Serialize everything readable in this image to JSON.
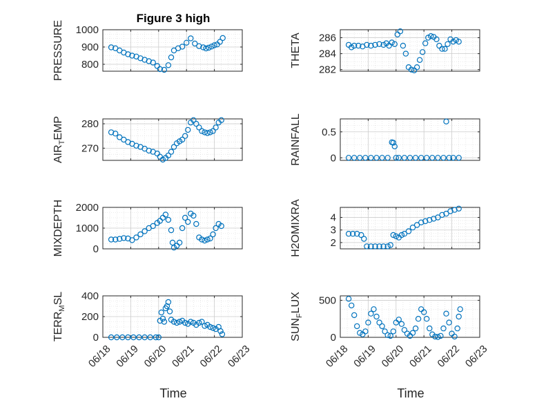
{
  "figure": {
    "title": "Figure 3 high",
    "xlabel": "Time"
  },
  "colors": {
    "marker": "#0072BD",
    "axis": "#262626",
    "grid": "#d9d9d9"
  },
  "chart_data": [
    {
      "id": "pressure",
      "type": "scatter",
      "ylabel": "PRESSURE",
      "sub": "",
      "suffix": "",
      "ylim": [
        760,
        1000
      ],
      "yticks": [
        800,
        900,
        1000
      ],
      "tick_labels": [
        "800",
        "900",
        "1000"
      ],
      "x": [
        0.3,
        0.45,
        0.6,
        0.75,
        0.9,
        1.05,
        1.2,
        1.35,
        1.5,
        1.65,
        1.8,
        1.95,
        2.05,
        2.2,
        2.35,
        2.45,
        2.55,
        2.7,
        2.85,
        3.0,
        3.15,
        3.3,
        3.45,
        3.6,
        3.7,
        3.8,
        3.9,
        4.0,
        4.1,
        4.2,
        4.3
      ],
      "y": [
        898,
        893,
        880,
        868,
        858,
        850,
        845,
        835,
        826,
        818,
        810,
        790,
        772,
        768,
        795,
        840,
        880,
        893,
        902,
        925,
        950,
        920,
        905,
        898,
        892,
        896,
        903,
        910,
        915,
        930,
        952
      ]
    },
    {
      "id": "theta",
      "type": "scatter",
      "ylabel": "THETA",
      "sub": "",
      "suffix": "",
      "ylim": [
        281.8,
        287
      ],
      "yticks": [
        282,
        284,
        286
      ],
      "tick_labels": [
        "282",
        "284",
        "286"
      ],
      "x": [
        0.3,
        0.4,
        0.5,
        0.65,
        0.8,
        0.95,
        1.1,
        1.25,
        1.4,
        1.55,
        1.65,
        1.75,
        1.85,
        1.95,
        2.05,
        2.15,
        2.25,
        2.35,
        2.45,
        2.55,
        2.65,
        2.75,
        2.85,
        2.95,
        3.05,
        3.15,
        3.25,
        3.35,
        3.45,
        3.55,
        3.65,
        3.75,
        3.85,
        3.95,
        4.05,
        4.15,
        4.25
      ],
      "y": [
        285.1,
        284.8,
        285.0,
        285.0,
        284.9,
        285.1,
        285.0,
        285.1,
        285.2,
        285.1,
        285.3,
        285.0,
        285.4,
        285.2,
        286.4,
        286.8,
        285.0,
        284.0,
        282.3,
        282.0,
        281.9,
        282.3,
        283.2,
        284.2,
        285.3,
        286.0,
        286.2,
        286.1,
        285.8,
        285.0,
        284.6,
        284.6,
        285.2,
        285.8,
        285.5,
        285.7,
        285.5
      ]
    },
    {
      "id": "air_temp",
      "type": "scatter",
      "ylabel": "AIR",
      "sub": "T",
      "suffix": "EMP",
      "ylim": [
        265,
        282
      ],
      "yticks": [
        270,
        280
      ],
      "tick_labels": [
        "270",
        "280"
      ],
      "x": [
        0.3,
        0.45,
        0.6,
        0.75,
        0.9,
        1.05,
        1.2,
        1.35,
        1.5,
        1.65,
        1.8,
        1.95,
        2.05,
        2.15,
        2.25,
        2.35,
        2.45,
        2.55,
        2.65,
        2.75,
        2.85,
        2.95,
        3.05,
        3.15,
        3.25,
        3.35,
        3.45,
        3.55,
        3.65,
        3.75,
        3.85,
        3.95,
        4.05,
        4.15,
        4.25
      ],
      "y": [
        276.5,
        276.0,
        274.5,
        273.5,
        272.5,
        271.8,
        271.0,
        270.5,
        269.8,
        269.0,
        268.5,
        267.8,
        266.5,
        265.3,
        266.0,
        267.0,
        268.5,
        270.5,
        272.0,
        272.8,
        273.5,
        275.0,
        277.5,
        280.5,
        281.5,
        280.0,
        278.5,
        277.0,
        276.5,
        276.2,
        276.5,
        277.0,
        278.5,
        280.5,
        281.5
      ]
    },
    {
      "id": "rainfall",
      "type": "scatter",
      "ylabel": "RAINFALL",
      "sub": "",
      "suffix": "",
      "ylim": [
        -0.05,
        0.75
      ],
      "yticks": [
        0,
        0.5
      ],
      "tick_labels": [
        "0",
        "0.5"
      ],
      "x": [
        0.3,
        0.5,
        0.7,
        0.9,
        1.1,
        1.3,
        1.5,
        1.7,
        1.85,
        1.9,
        1.95,
        2.0,
        2.1,
        2.3,
        2.5,
        2.7,
        2.9,
        3.1,
        3.3,
        3.5,
        3.7,
        3.8,
        3.9,
        4.05,
        4.25
      ],
      "y": [
        0,
        0,
        0,
        0,
        0,
        0,
        0,
        0,
        0.3,
        0.29,
        0.22,
        0,
        0,
        0,
        0,
        0,
        0,
        0,
        0,
        0,
        0,
        0.7,
        0,
        0,
        0
      ]
    },
    {
      "id": "mixdepth",
      "type": "scatter",
      "ylabel": "MIXDEPTH",
      "sub": "",
      "suffix": "",
      "ylim": [
        0,
        2000
      ],
      "yticks": [
        0,
        1000,
        2000
      ],
      "tick_labels": [
        "0",
        "1000",
        "2000"
      ],
      "x": [
        0.3,
        0.45,
        0.6,
        0.75,
        0.9,
        1.05,
        1.2,
        1.35,
        1.5,
        1.65,
        1.8,
        1.95,
        2.05,
        2.15,
        2.25,
        2.35,
        2.45,
        2.5,
        2.55,
        2.65,
        2.75,
        2.85,
        2.95,
        3.05,
        3.15,
        3.25,
        3.35,
        3.45,
        3.55,
        3.65,
        3.75,
        3.85,
        3.95,
        4.05,
        4.15,
        4.25
      ],
      "y": [
        450,
        450,
        480,
        520,
        500,
        420,
        550,
        700,
        850,
        1000,
        1100,
        1250,
        1350,
        1500,
        1650,
        1400,
        900,
        300,
        60,
        150,
        300,
        1000,
        1500,
        1300,
        1700,
        1600,
        1200,
        550,
        450,
        400,
        450,
        500,
        700,
        1000,
        1200,
        1100
      ]
    },
    {
      "id": "h2omixra",
      "type": "scatter",
      "ylabel": "H2OMIXRA",
      "sub": "",
      "suffix": "",
      "ylim": [
        1.5,
        4.8
      ],
      "yticks": [
        2,
        3,
        4
      ],
      "tick_labels": [
        "2",
        "3",
        "4"
      ],
      "x": [
        0.3,
        0.45,
        0.6,
        0.75,
        0.85,
        0.95,
        1.1,
        1.25,
        1.4,
        1.55,
        1.7,
        1.8,
        1.9,
        2.0,
        2.1,
        2.2,
        2.3,
        2.45,
        2.6,
        2.75,
        2.9,
        3.05,
        3.2,
        3.35,
        3.5,
        3.65,
        3.8,
        3.95,
        4.1,
        4.25
      ],
      "y": [
        2.7,
        2.7,
        2.7,
        2.6,
        2.3,
        1.7,
        1.7,
        1.7,
        1.7,
        1.7,
        1.7,
        1.8,
        2.6,
        2.5,
        2.4,
        2.6,
        2.7,
        2.9,
        3.2,
        3.4,
        3.6,
        3.7,
        3.8,
        3.9,
        4.0,
        4.2,
        4.3,
        4.5,
        4.6,
        4.7
      ]
    },
    {
      "id": "terr_msl",
      "type": "scatter",
      "ylabel": "TERR",
      "sub": "M",
      "suffix": "SL",
      "ylim": [
        0,
        400
      ],
      "yticks": [
        0,
        200,
        400
      ],
      "tick_labels": [
        "0",
        "200",
        "400"
      ],
      "x": [
        0.3,
        0.5,
        0.7,
        0.9,
        1.1,
        1.3,
        1.5,
        1.7,
        1.9,
        2.0,
        2.05,
        2.1,
        2.15,
        2.2,
        2.25,
        2.3,
        2.35,
        2.4,
        2.45,
        2.55,
        2.65,
        2.75,
        2.85,
        2.95,
        3.05,
        3.15,
        3.25,
        3.35,
        3.45,
        3.55,
        3.65,
        3.75,
        3.85,
        3.95,
        4.05,
        4.15,
        4.22,
        4.28
      ],
      "y": [
        0,
        0,
        0,
        0,
        0,
        0,
        0,
        0,
        0,
        0,
        160,
        240,
        180,
        150,
        280,
        300,
        340,
        250,
        170,
        150,
        140,
        150,
        160,
        140,
        130,
        150,
        140,
        120,
        140,
        150,
        110,
        120,
        100,
        90,
        80,
        100,
        60,
        30
      ]
    },
    {
      "id": "sun_flux",
      "type": "scatter",
      "ylabel": "SUN",
      "sub": "F",
      "suffix": "LUX",
      "ylim": [
        0,
        560
      ],
      "yticks": [
        0,
        500
      ],
      "tick_labels": [
        "0",
        "500"
      ],
      "x": [
        0.3,
        0.4,
        0.5,
        0.6,
        0.7,
        0.8,
        0.9,
        1.0,
        1.1,
        1.2,
        1.3,
        1.4,
        1.5,
        1.6,
        1.7,
        1.8,
        1.9,
        2.0,
        2.1,
        2.2,
        2.3,
        2.4,
        2.5,
        2.6,
        2.7,
        2.8,
        2.9,
        3.0,
        3.1,
        3.2,
        3.3,
        3.4,
        3.5,
        3.6,
        3.7,
        3.8,
        3.9,
        4.0,
        4.1,
        4.2,
        4.25,
        4.3
      ],
      "y": [
        520,
        430,
        300,
        150,
        60,
        40,
        80,
        200,
        320,
        380,
        280,
        200,
        150,
        80,
        30,
        20,
        80,
        200,
        240,
        180,
        100,
        50,
        20,
        60,
        120,
        250,
        380,
        340,
        250,
        120,
        40,
        10,
        5,
        20,
        120,
        320,
        200,
        50,
        10,
        120,
        280,
        380
      ]
    }
  ],
  "x_axis": {
    "xlim": [
      0,
      5
    ],
    "tick_positions": [
      0,
      1,
      2,
      3,
      4,
      5
    ],
    "tick_labels": [
      "06/18",
      "06/19",
      "06/20",
      "06/21",
      "06/22",
      "06/23"
    ]
  }
}
